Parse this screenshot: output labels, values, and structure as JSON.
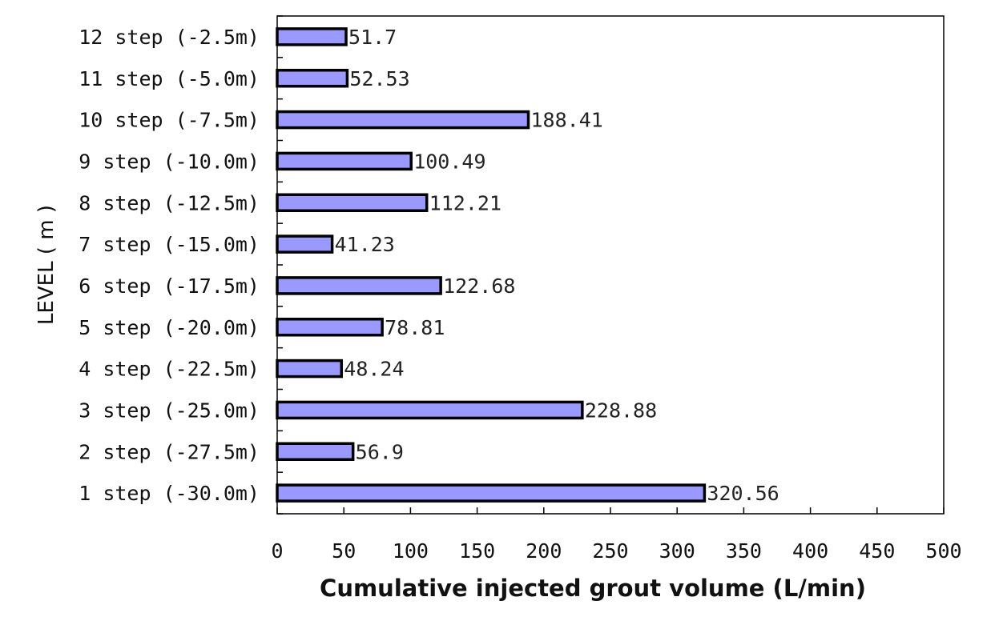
{
  "chart_data": {
    "type": "bar",
    "orientation": "horizontal",
    "categories": [
      "12 step (-2.5m)",
      "11 step (-5.0m)",
      "10 step (-7.5m)",
      "9 step (-10.0m)",
      "8 step (-12.5m)",
      "7 step (-15.0m)",
      "6 step (-17.5m)",
      "5 step (-20.0m)",
      "4 step (-22.5m)",
      "3 step (-25.0m)",
      "2 step (-27.5m)",
      "1 step (-30.0m)"
    ],
    "values": [
      51.7,
      52.53,
      188.41,
      100.49,
      112.21,
      41.23,
      122.68,
      78.81,
      48.24,
      228.88,
      56.9,
      320.56
    ],
    "data_labels": [
      "51.7",
      "52.53",
      "188.41",
      "100.49",
      "112.21",
      "41.23",
      "122.68",
      "78.81",
      "48.24",
      "228.88",
      "56.9",
      "320.56"
    ],
    "xlabel": "Cumulative injected grout volume (L/min)",
    "ylabel": "LEVEL ( m )",
    "xlim": [
      0,
      500
    ],
    "xticks": [
      0,
      50,
      100,
      150,
      200,
      250,
      300,
      350,
      400,
      450,
      500
    ],
    "grid": false,
    "legend": "none",
    "colors": {
      "bar_fill": "#9999ff",
      "bar_stroke": "#000000",
      "axis": "#000000"
    }
  }
}
